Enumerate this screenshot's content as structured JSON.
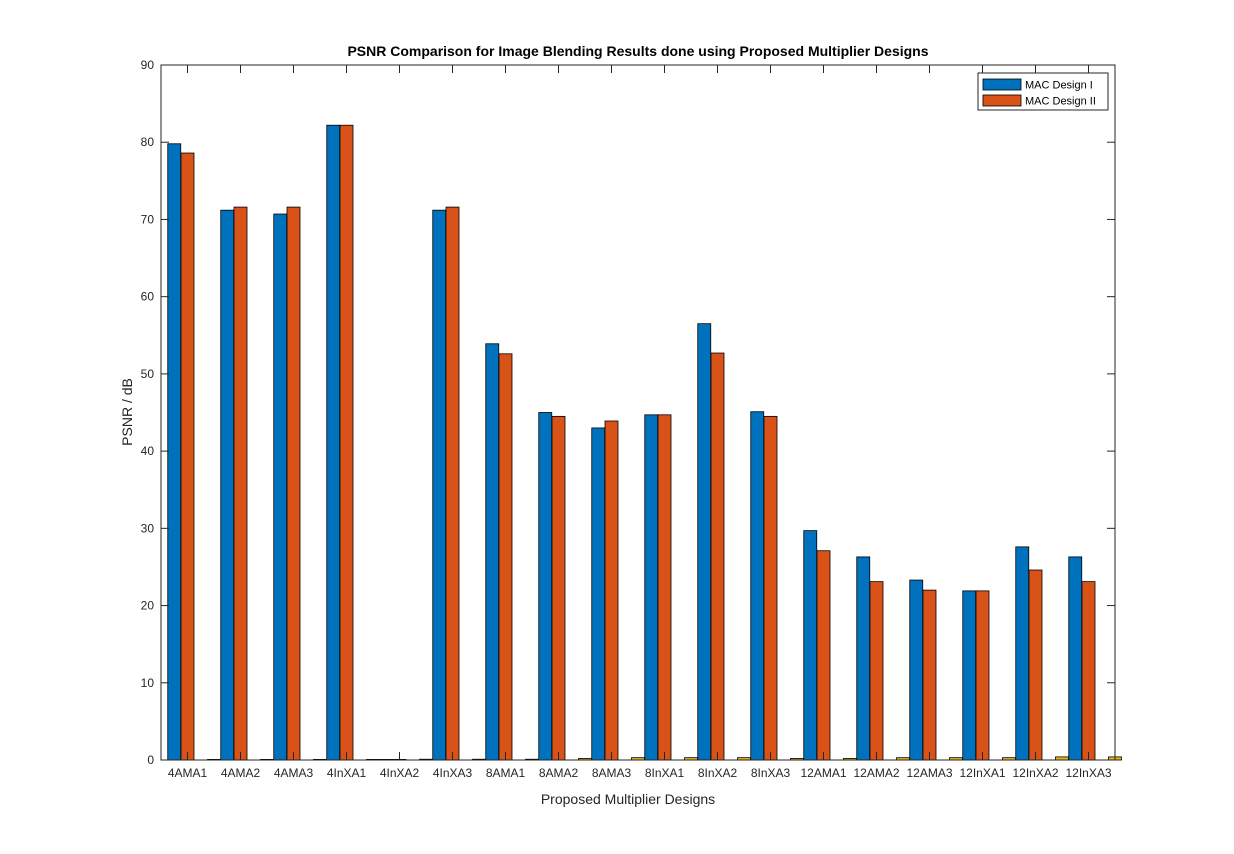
{
  "chart_data": {
    "type": "bar",
    "title": "PSNR Comparison for Image Blending Results done using Proposed Multiplier Designs",
    "xlabel": "Proposed Multiplier Designs",
    "ylabel": "PSNR / dB",
    "ylim": [
      0,
      90
    ],
    "yticks": [
      0,
      10,
      20,
      30,
      40,
      50,
      60,
      70,
      80,
      90
    ],
    "grid": false,
    "legend_location": "top-right",
    "categories": [
      "4AMA1",
      "4AMA2",
      "4AMA3",
      "4InXA1",
      "4InXA2",
      "4InXA3",
      "8AMA1",
      "8AMA2",
      "8AMA3",
      "8InXA1",
      "8InXA2",
      "8InXA3",
      "12AMA1",
      "12AMA2",
      "12AMA3",
      "12InXA1",
      "12InXA2",
      "12InXA3"
    ],
    "series": [
      {
        "name": "MAC Design I",
        "color": "#0072BD",
        "values": [
          79.8,
          71.2,
          70.7,
          82.2,
          0,
          71.2,
          53.9,
          45.0,
          43.0,
          44.7,
          56.5,
          45.1,
          29.7,
          26.3,
          23.3,
          21.9,
          27.6,
          26.3
        ]
      },
      {
        "name": "MAC Design II",
        "color": "#D95319",
        "values": [
          78.6,
          71.6,
          71.6,
          82.2,
          0,
          71.6,
          52.6,
          44.5,
          43.9,
          44.7,
          52.7,
          44.5,
          27.1,
          23.1,
          22.0,
          21.9,
          24.6,
          23.1
        ]
      },
      {
        "name": "",
        "color": "#EDB120",
        "values": [
          0.03,
          0.05,
          0.05,
          0.05,
          0.1,
          0.1,
          0.1,
          0.2,
          0.3,
          0.3,
          0.3,
          0.2,
          0.2,
          0.3,
          0.3,
          0.3,
          0.4,
          0.4
        ]
      }
    ]
  }
}
